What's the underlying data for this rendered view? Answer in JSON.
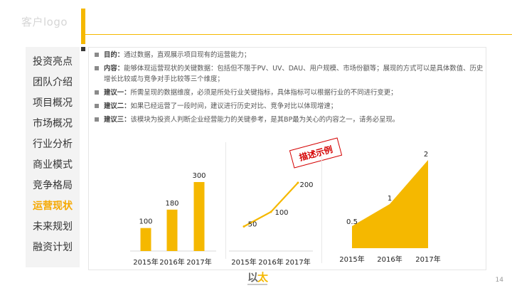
{
  "header": {
    "logo_text": "客户logo"
  },
  "nav": [
    {
      "label": "投资亮点",
      "active": false
    },
    {
      "label": "团队介绍",
      "active": false
    },
    {
      "label": "项目概况",
      "active": false
    },
    {
      "label": "市场概况",
      "active": false
    },
    {
      "label": "行业分析",
      "active": false
    },
    {
      "label": "商业模式",
      "active": false
    },
    {
      "label": "竞争格局",
      "active": false
    },
    {
      "label": "运营现状",
      "active": true
    },
    {
      "label": "未来规划",
      "active": false
    },
    {
      "label": "融资计划",
      "active": false
    }
  ],
  "bullets": [
    {
      "key": "目的：",
      "text": "通过数据，直观展示项目现有的运营能力；"
    },
    {
      "key": "内容：",
      "text": "能够体现运营现状的关键数据：包括但不限于PV、UV、DAU、用户规模、市场份额等；展现的方式可以是具体数值、历史增长比较或与竞争对手比较等三个维度；"
    },
    {
      "key": "建议一：",
      "text": "所需呈现的数据维度，必须是所处行业关键指标，具体指标可以根据行业的不同进行变更；"
    },
    {
      "key": "建议二：",
      "text": "如果已经运营了一段时间，建议进行历史对比、竞争对比以体现增速；"
    },
    {
      "key": "建议三：",
      "text": "该模块为投资人判断企业经营能力的关键参考，是其BP最为关心的内容之一，请务必呈现。"
    }
  ],
  "stamp": {
    "text": "描述示例"
  },
  "page_number": "14",
  "colors": {
    "accent": "#f5b800",
    "stamp": "#d40000"
  },
  "chart_data": [
    {
      "type": "bar",
      "categories": [
        "2015年",
        "2016年",
        "2017年"
      ],
      "values": [
        100,
        180,
        300
      ],
      "ylim": [
        0,
        300
      ]
    },
    {
      "type": "line",
      "categories": [
        "2015年",
        "2016年",
        "2017年"
      ],
      "values": [
        50,
        100,
        200
      ],
      "ylim": [
        0,
        200
      ]
    },
    {
      "type": "area",
      "categories": [
        "2015年",
        "2016年",
        "2017年"
      ],
      "values": [
        0.5,
        1,
        2
      ],
      "ylim": [
        0,
        2
      ]
    }
  ]
}
